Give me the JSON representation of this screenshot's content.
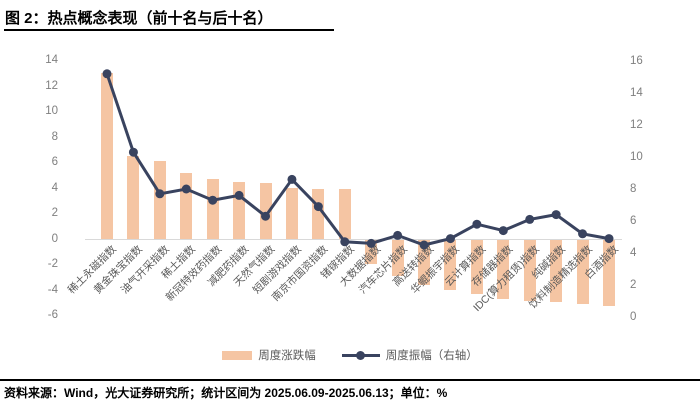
{
  "header": {
    "title": "图 2：热点概念表现（前十名与后十名）"
  },
  "legend": {
    "bar_label": "周度涨跌幅",
    "line_label": "周度振幅（右轴）"
  },
  "footer": {
    "source": "资料来源：Wind，光大证券研究所；统计区间为 2025.06.09-2025.06.13；单位：%"
  },
  "colors": {
    "bar": "#f5c5a3",
    "line": "#39435f",
    "axis_text": "#7f7f7f",
    "category_text": "#595959",
    "baseline": "#d9d9d9"
  },
  "chart_data": {
    "type": "bar",
    "subtype": "bar-line-combo",
    "title": "热点概念表现（前十名与后十名）",
    "categories": [
      "稀土永磁指数",
      "黄金珠宝指数",
      "油气开采指数",
      "稀土指数",
      "新冠特效药指数",
      "减肥药指数",
      "天然气指数",
      "短剧游戏指数",
      "南京市国资指数",
      "锗镓指数",
      "大数据指数",
      "汽车芯片指数",
      "高送转指数",
      "华鲲振宇指数",
      "云计算指数",
      "存储器指数",
      "IDC(算力租赁)指数",
      "纯碱指数",
      "饮料制造精选指数",
      "白酒指数"
    ],
    "series": [
      {
        "name": "周度涨跌幅",
        "type": "bar",
        "axis": "left",
        "values": [
          13.0,
          6.5,
          6.1,
          5.2,
          4.7,
          4.5,
          4.4,
          4.0,
          3.9,
          3.9,
          -1.9,
          -2.8,
          -3.5,
          -3.9,
          -4.2,
          -4.6,
          -4.8,
          -4.9,
          -5.0,
          -5.2
        ]
      },
      {
        "name": "周度振幅（右轴）",
        "type": "line",
        "axis": "right",
        "values": [
          15.2,
          10.3,
          7.7,
          8.0,
          7.3,
          7.6,
          6.3,
          8.6,
          6.9,
          4.7,
          4.6,
          5.1,
          4.5,
          4.9,
          5.8,
          5.4,
          6.1,
          6.4,
          5.2,
          4.9
        ]
      }
    ],
    "left_axis": {
      "min": -6,
      "max": 14,
      "step": 2
    },
    "right_axis": {
      "min": 0,
      "max": 16,
      "step": 2
    },
    "grid": false,
    "legend_position": "bottom",
    "unit": "%"
  }
}
